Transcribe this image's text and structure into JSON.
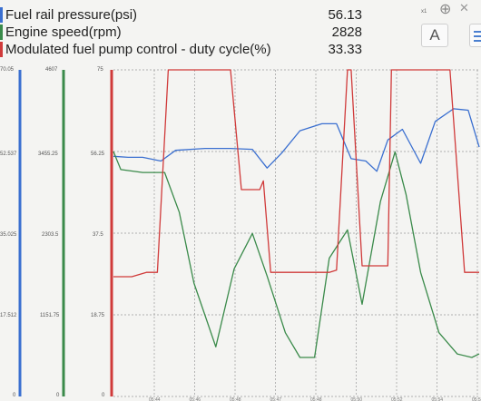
{
  "legend": [
    {
      "label": "Fuel rail pressure(psi)",
      "value": "56.13",
      "color": "#3a6fd0"
    },
    {
      "label": "Engine speed(rpm)",
      "value": "2828",
      "color": "#3a8a4a"
    },
    {
      "label": "Modulated fuel pump control - duty cycle(%)",
      "value": "33.33",
      "color": "#d03a3a"
    }
  ],
  "controls": {
    "page_indicator": "x1",
    "font_button_label": "A",
    "zoom_icon": "zoom-in-icon",
    "close_icon": "close-icon",
    "menu_icon": "menu-icon"
  },
  "axes": {
    "pressure": {
      "ticks": [
        "70.05",
        "52.537",
        "35.025",
        "17.512",
        "0"
      ],
      "color": "#3a6fd0"
    },
    "rpm": {
      "ticks": [
        "4607",
        "3455.25",
        "2303.5",
        "1151.75",
        "0"
      ],
      "color": "#3a8a4a"
    },
    "duty": {
      "ticks": [
        "75",
        "56.25",
        "37.5",
        "18.75",
        "0"
      ],
      "color": "#d03a3a"
    }
  },
  "chart_data": {
    "type": "line",
    "ylim_pressure": [
      0,
      70.05
    ],
    "ylim_rpm": [
      0,
      4607
    ],
    "ylim_duty": [
      0,
      75
    ],
    "series": [
      {
        "name": "Fuel rail pressure(psi)",
        "axis": "pressure",
        "x": [
          0,
          0.04,
          0.08,
          0.13,
          0.17,
          0.25,
          0.32,
          0.38,
          0.42,
          0.46,
          0.51,
          0.57,
          0.61,
          0.65,
          0.69,
          0.72,
          0.75,
          0.79,
          0.84,
          0.88,
          0.93,
          0.97,
          1.0
        ],
        "y": [
          51.5,
          51.3,
          51.3,
          50.5,
          52.8,
          53.2,
          53.2,
          53.0,
          49.0,
          52.2,
          57.0,
          58.5,
          58.5,
          51.0,
          50.5,
          48.3,
          55.0,
          57.3,
          50.0,
          59.0,
          61.7,
          61.4,
          53.5
        ]
      },
      {
        "name": "Engine speed(rpm)",
        "axis": "rpm",
        "x": [
          0,
          0.02,
          0.08,
          0.14,
          0.18,
          0.22,
          0.28,
          0.33,
          0.38,
          0.42,
          0.47,
          0.51,
          0.55,
          0.59,
          0.64,
          0.68,
          0.73,
          0.77,
          0.8,
          0.84,
          0.89,
          0.94,
          0.98,
          1.0
        ],
        "y": [
          3455,
          3200,
          3160,
          3160,
          2600,
          1600,
          700,
          1800,
          2300,
          1700,
          900,
          550,
          550,
          1950,
          2350,
          1300,
          2750,
          3450,
          2850,
          1750,
          900,
          600,
          550,
          600
        ]
      },
      {
        "name": "Modulated fuel pump control - duty cycle(%)",
        "axis": "duty",
        "x": [
          0,
          0.05,
          0.09,
          0.12,
          0.15,
          0.165,
          0.3,
          0.32,
          0.35,
          0.4,
          0.41,
          0.43,
          0.46,
          0.5,
          0.59,
          0.61,
          0.64,
          0.65,
          0.68,
          0.75,
          0.76,
          0.8,
          0.83,
          0.84,
          0.85,
          0.92,
          0.96,
          1.0
        ],
        "y": [
          27.5,
          27.5,
          28.5,
          28.5,
          75,
          75,
          75,
          75,
          47.5,
          47.5,
          49.5,
          28.5,
          28.5,
          28.5,
          28.5,
          29,
          75,
          75,
          30,
          30,
          75,
          75,
          75,
          75,
          75,
          75,
          28.5,
          28.5
        ]
      }
    ],
    "x_ticks": [
      "05:44",
      "05:46",
      "05:48",
      "05:47",
      "05:48",
      "05:50",
      "05:52",
      "05:54",
      "05:53"
    ],
    "grid": true
  }
}
